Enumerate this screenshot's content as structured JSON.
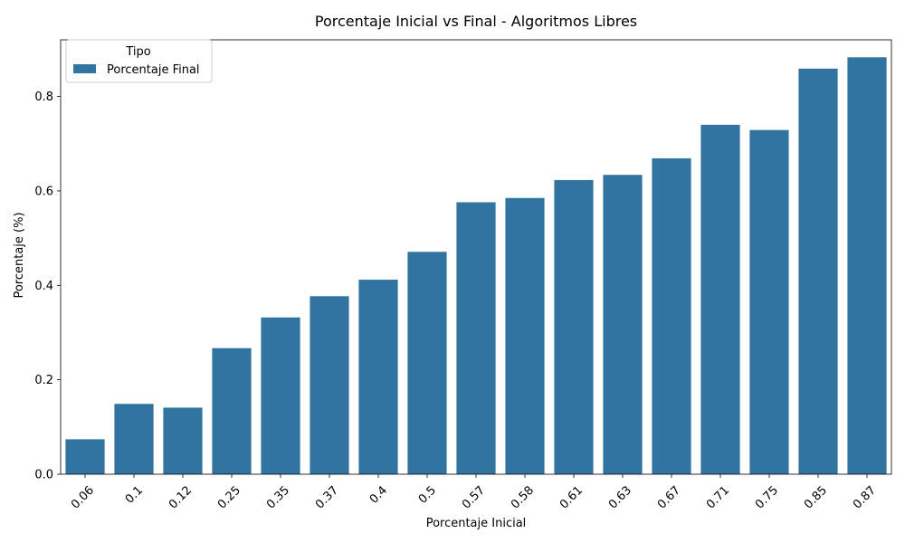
{
  "chart_data": {
    "type": "bar",
    "title": "Porcentaje Inicial vs Final - Algoritmos Libres",
    "xlabel": "Porcentaje Inicial",
    "ylabel": "Porcentaje (%)",
    "ylim": [
      0,
      0.92
    ],
    "yticks": [
      "0.0",
      "0.2",
      "0.4",
      "0.6",
      "0.8"
    ],
    "yticks_values": [
      0,
      0.2,
      0.4,
      0.6,
      0.8
    ],
    "grid": false,
    "legend": {
      "title": "Tipo",
      "placement": "upper-left"
    },
    "categories": [
      "0.06",
      "0.1",
      "0.12",
      "0.25",
      "0.35",
      "0.37",
      "0.4",
      "0.5",
      "0.57",
      "0.58",
      "0.61",
      "0.63",
      "0.67",
      "0.71",
      "0.75",
      "0.85",
      "0.87"
    ],
    "series": [
      {
        "name": "Porcentaje Final",
        "color": "#3274a1",
        "values": [
          0.074,
          0.149,
          0.141,
          0.267,
          0.332,
          0.377,
          0.412,
          0.471,
          0.576,
          0.585,
          0.623,
          0.634,
          0.669,
          0.74,
          0.729,
          0.859,
          0.883
        ]
      }
    ]
  }
}
